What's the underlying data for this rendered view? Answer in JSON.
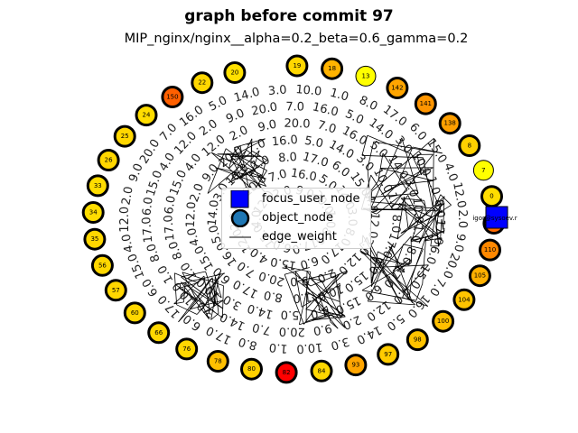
{
  "figure": {
    "title": "graph before commit 97",
    "subtitle": "MIP_nginx/nginx__alpha=0.2_beta=0.6_gamma=0.2"
  },
  "legend": {
    "items": [
      {
        "label": "focus_user_node",
        "symbol": "square",
        "color": "#0000ff"
      },
      {
        "label": "object_node",
        "symbol": "circle",
        "color": "#1f77b4"
      },
      {
        "label": "edge_weight",
        "symbol": "line",
        "color": "#000000"
      }
    ]
  },
  "focus_user": {
    "label": "igor@sysoev.r",
    "color": "#0000ff"
  },
  "nodes": [
    {
      "label": "19",
      "color": "#ffd700"
    },
    {
      "label": "18",
      "color": "#ffb300"
    },
    {
      "label": "13",
      "color": "#ffff00"
    },
    {
      "label": "142",
      "color": "#ffa500"
    },
    {
      "label": "141",
      "color": "#ff9500"
    },
    {
      "label": "138",
      "color": "#ff9f00"
    },
    {
      "label": "8",
      "color": "#ffd000"
    },
    {
      "label": "7",
      "color": "#ffff00"
    },
    {
      "label": "0",
      "color": "#ffdd00"
    },
    {
      "label": "124",
      "color": "#ff6a00"
    },
    {
      "label": "110",
      "color": "#ff8800"
    },
    {
      "label": "105",
      "color": "#ffb000"
    },
    {
      "label": "104",
      "color": "#ffc400"
    },
    {
      "label": "100",
      "color": "#ffbf00"
    },
    {
      "label": "98",
      "color": "#ffc300"
    },
    {
      "label": "97",
      "color": "#ffcc00"
    },
    {
      "label": "93",
      "color": "#ffa500"
    },
    {
      "label": "84",
      "color": "#ffd700"
    },
    {
      "label": "82",
      "color": "#ff0000"
    },
    {
      "label": "80",
      "color": "#ffd000"
    },
    {
      "label": "78",
      "color": "#ffc000"
    },
    {
      "label": "76",
      "color": "#ffd700"
    },
    {
      "label": "66",
      "color": "#ffd700"
    },
    {
      "label": "60",
      "color": "#ffd700"
    },
    {
      "label": "57",
      "color": "#ffd700"
    },
    {
      "label": "56",
      "color": "#ffd700"
    },
    {
      "label": "35",
      "color": "#ffd700"
    },
    {
      "label": "34",
      "color": "#ffdd00"
    },
    {
      "label": "33",
      "color": "#ffdd00"
    },
    {
      "label": "26",
      "color": "#ffd700"
    },
    {
      "label": "25",
      "color": "#ffd700"
    },
    {
      "label": "24",
      "color": "#ffdd00"
    },
    {
      "label": "150",
      "color": "#ff6000"
    },
    {
      "label": "22",
      "color": "#ffd700"
    },
    {
      "label": "20",
      "color": "#ffe000"
    }
  ],
  "edge_weight_labels": [
    "1.0",
    "2.0",
    "3.0",
    "4.0",
    "5.0",
    "6.0",
    "7.0",
    "8.0",
    "9.0",
    "10.0",
    "12.0",
    "14.0",
    "15.0",
    "16.0",
    "17.0",
    "20.0"
  ]
}
